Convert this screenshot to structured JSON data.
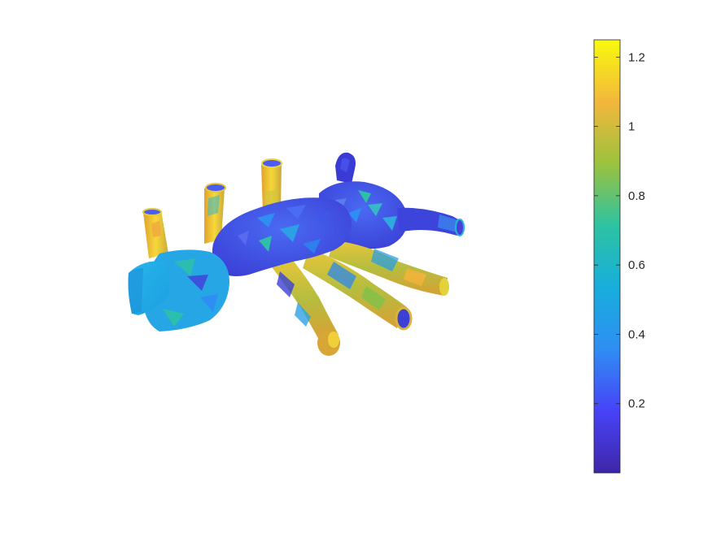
{
  "chart_data": {
    "type": "heatmap",
    "description_kind": "3d-surface-colormap",
    "title": "",
    "xlabel": "",
    "ylabel": "",
    "axes_visible": false,
    "grid": false,
    "colorbar": {
      "colormap": "parula",
      "colors": [
        "#3e26a8",
        "#4743f8",
        "#2f8ef3",
        "#17aedc",
        "#2dc3a2",
        "#9cc23d",
        "#f3b73c",
        "#f8fa0d"
      ],
      "limits": [
        0.0,
        1.25
      ],
      "ticks": [
        0.2,
        0.4,
        0.6,
        0.8,
        1.0,
        1.2
      ],
      "tick_labels": [
        "0.2",
        "0.4",
        "0.6",
        "0.8",
        "1",
        "1.2"
      ],
      "placement": "right"
    }
  }
}
